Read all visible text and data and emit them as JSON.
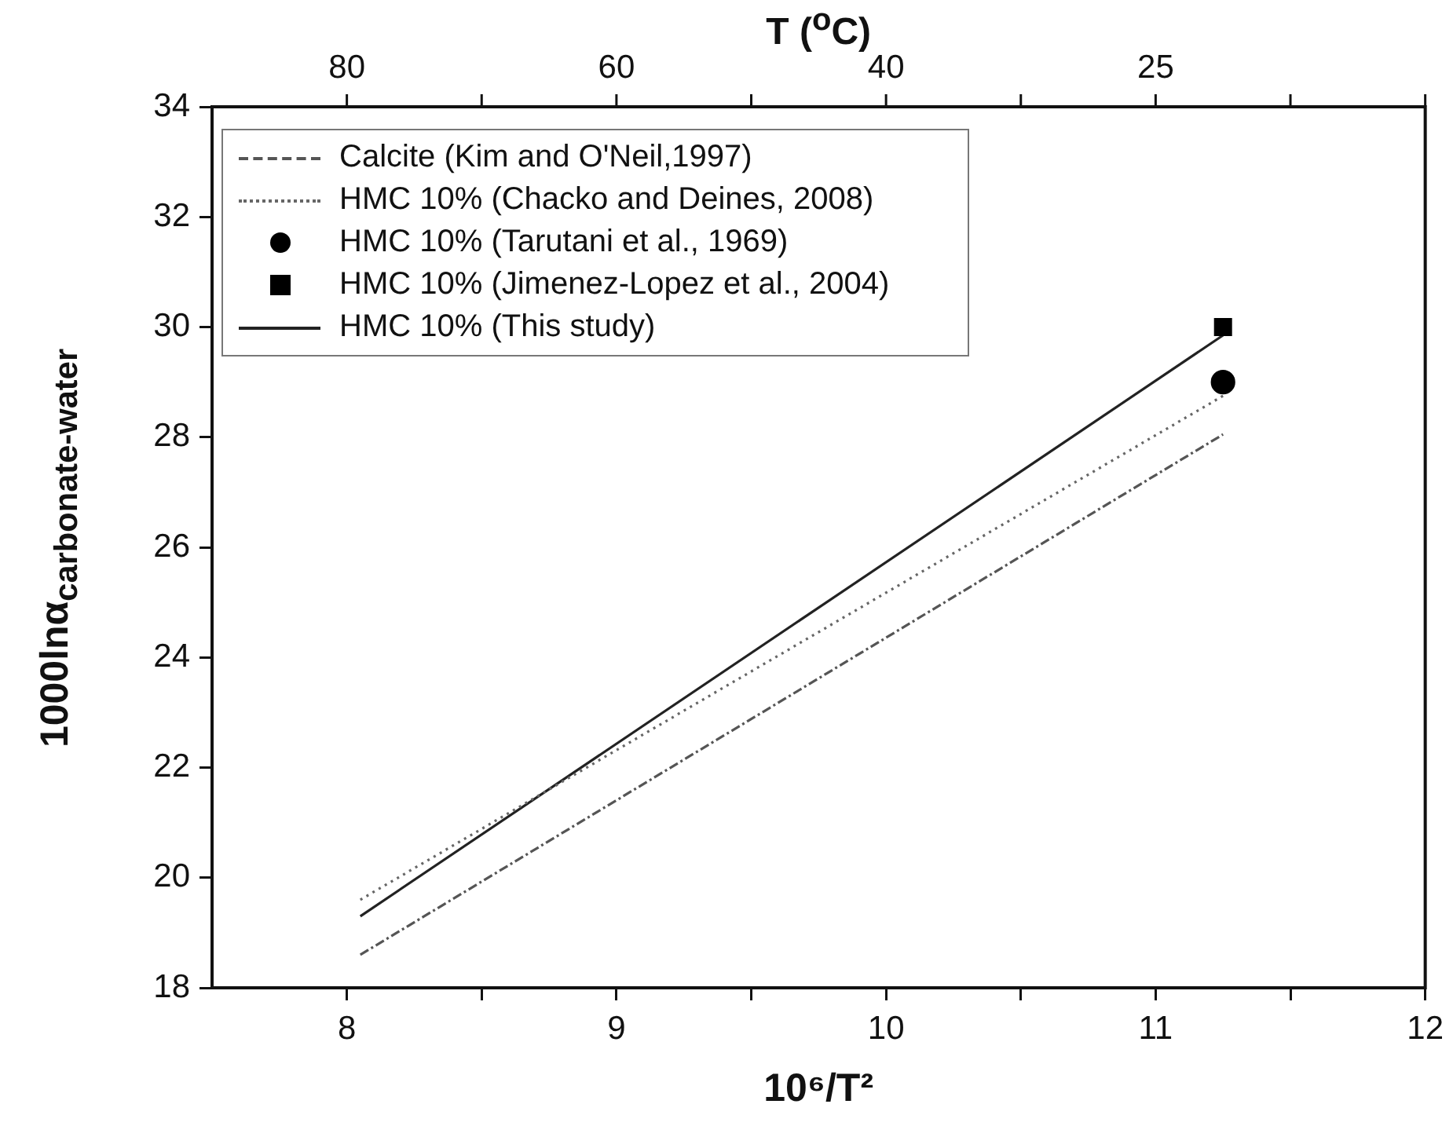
{
  "chart_data": {
    "type": "line",
    "xlabel": "10⁶/T²",
    "ylabel": "1000lnα$_{carbonate-water}$",
    "x2label": "T ($^{o}$C)",
    "xlim": [
      7.5,
      12
    ],
    "xticks": [
      8,
      {
        "value": 8.5,
        "label": null
      },
      9,
      {
        "value": 9.5,
        "label": null
      },
      10,
      {
        "value": 10.5,
        "label": null
      },
      11,
      {
        "value": 11.5,
        "label": null
      },
      12
    ],
    "annotations": [
      "80",
      "60",
      "40",
      "25"
    ],
    "ylim": [
      18,
      34
    ],
    "yticks": [
      18,
      20,
      22,
      24,
      26,
      28,
      30,
      32,
      34
    ],
    "grid": false,
    "legend": "top left",
    "x": [
      8.05,
      11.25
    ],
    "series": [
      {
        "name": "Calcite (Kim and O'Neil,1997)",
        "type": "line",
        "line_style": "dashed",
        "marker": "none",
        "color": "#555555",
        "values": [
          18.6,
          28.05
        ]
      },
      {
        "name": "HMC 10% (Chacko and Deines, 2008)",
        "type": "line",
        "line_style": "dotted",
        "marker": "none",
        "color": "#666666",
        "values": [
          19.6,
          28.75
        ]
      },
      {
        "name": "HMC 10% (Tarutani et al., 1969)",
        "type": "scatter",
        "marker": "circle",
        "color": "#000000",
        "values": [
          null,
          29.0
        ]
      },
      {
        "name": "HMC 10% (Jimenez-Lopez et al., 2004)",
        "type": "scatter",
        "marker": "square",
        "color": "#000000",
        "values": [
          null,
          30.0
        ]
      },
      {
        "name": "HMC 10% (This study)",
        "type": "line",
        "line_style": "solid",
        "marker": "none",
        "color": "#222222",
        "values": [
          19.3,
          29.85
        ]
      }
    ]
  }
}
